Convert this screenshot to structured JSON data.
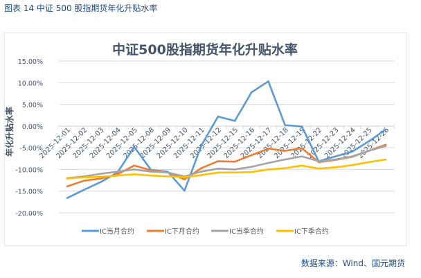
{
  "caption": "图表 14  中证 500 股指期货年化升贴水率",
  "source": "数据来源：Wind、国元期货",
  "chart_data": {
    "type": "line",
    "title": "中证500股指期货年化升贴水率",
    "ylabel": "年化升贴水率",
    "xlabel": "",
    "ylim": [
      -0.2,
      0.15
    ],
    "yticks": [
      0.15,
      0.1,
      0.05,
      0.0,
      -0.05,
      -0.1,
      -0.15,
      -0.2
    ],
    "ytick_labels": [
      "15.00%",
      "10.00%",
      "5.00%",
      "0.00%",
      "-5.00%",
      "-10.00%",
      "-15.00%",
      "-20.00%"
    ],
    "grid": true,
    "legend": "bottom",
    "categories": [
      "2025-12-01",
      "2025-12-02",
      "2025-12-03",
      "2025-12-04",
      "2025-12-05",
      "2025-12-08",
      "2025-12-09",
      "2025-12-10",
      "2025-12-11",
      "2025-12-12",
      "2025-12-15",
      "2025-12-16",
      "2025-12-17",
      "2025-12-18",
      "2025-12-19",
      "2025-12-22",
      "2025-12-23",
      "2025-12-24",
      "2025-12-25",
      "2025-12-26"
    ],
    "series": [
      {
        "name": "IC当月合约",
        "color": "#5b9bd5",
        "values": [
          -0.166,
          -0.147,
          -0.129,
          -0.107,
          -0.048,
          -0.101,
          -0.105,
          -0.149,
          -0.045,
          0.022,
          0.012,
          0.078,
          0.103,
          0.002,
          -0.001,
          -0.081,
          -0.07,
          -0.059,
          -0.035,
          -0.008
        ]
      },
      {
        "name": "IC下月合约",
        "color": "#ed7d31",
        "values": [
          -0.139,
          -0.126,
          -0.121,
          -0.111,
          -0.091,
          -0.102,
          -0.107,
          -0.123,
          -0.097,
          -0.081,
          -0.082,
          -0.067,
          -0.052,
          -0.057,
          -0.051,
          -0.083,
          -0.078,
          -0.071,
          -0.057,
          -0.043
        ]
      },
      {
        "name": "IC当季合约",
        "color": "#a5a5a5",
        "values": [
          -0.12,
          -0.116,
          -0.11,
          -0.105,
          -0.1,
          -0.105,
          -0.107,
          -0.116,
          -0.105,
          -0.098,
          -0.1,
          -0.094,
          -0.085,
          -0.077,
          -0.07,
          -0.081,
          -0.077,
          -0.07,
          -0.057,
          -0.046
        ]
      },
      {
        "name": "IC下季合约",
        "color": "#ffc000",
        "values": [
          -0.121,
          -0.118,
          -0.117,
          -0.114,
          -0.111,
          -0.114,
          -0.116,
          -0.118,
          -0.113,
          -0.107,
          -0.107,
          -0.106,
          -0.1,
          -0.097,
          -0.091,
          -0.098,
          -0.095,
          -0.09,
          -0.083,
          -0.077
        ]
      }
    ]
  }
}
